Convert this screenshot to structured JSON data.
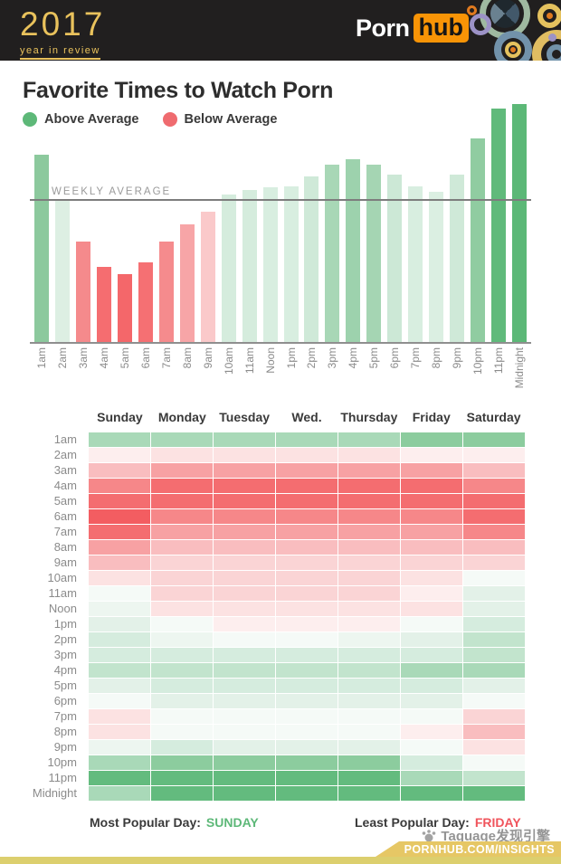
{
  "header": {
    "year": "2017",
    "tagline": "year in review",
    "brand_porn": "Porn",
    "brand_hub": "hub"
  },
  "title": "Favorite Times to Watch Porn",
  "legend": {
    "above": "Above Average",
    "below": "Below Average"
  },
  "colors": {
    "above_green": "#5db878",
    "below_red": "#ef6b6f",
    "gold": "#e9c25c",
    "hub_orange": "#f89406",
    "header_bg": "#211f1f",
    "ribbon_gold": "#e6c765",
    "strip_gold": "#dccf6e"
  },
  "chart_data": [
    {
      "type": "bar",
      "title": "Favorite Times to Watch Porn (hourly traffic vs weekly average)",
      "categories": [
        "1am",
        "2am",
        "3am",
        "4am",
        "5am",
        "6am",
        "7am",
        "8am",
        "9am",
        "10am",
        "11am",
        "Noon",
        "1pm",
        "2pm",
        "3pm",
        "4pm",
        "5pm",
        "6pm",
        "7pm",
        "8pm",
        "9pm",
        "10pm",
        "11pm",
        "Midnight"
      ],
      "values": [
        132,
        100,
        71,
        53,
        48,
        56,
        71,
        83,
        92,
        104,
        107,
        109,
        110,
        117,
        125,
        129,
        125,
        118,
        110,
        106,
        118,
        144,
        165,
        168
      ],
      "unit": "percent of weekly average",
      "ylim": [
        0,
        175
      ],
      "average_line": {
        "label": "WEEKLY AVERAGE",
        "value": 100
      },
      "legend_position": "top-left",
      "grid": false,
      "bar_colors": [
        "#8cc99d",
        "#ddefe3",
        "#f58a8c",
        "#f56d70",
        "#f4676a",
        "#f57073",
        "#f58b8d",
        "#f7a5a7",
        "#fac9ca",
        "#d5ecdd",
        "#d5ecdd",
        "#d8eee0",
        "#d8eee0",
        "#cfe9d8",
        "#a8d7b6",
        "#9dd2ad",
        "#a5d5b3",
        "#cce8d6",
        "#d8eee0",
        "#dbefe2",
        "#cfe9d8",
        "#90cca1",
        "#60ba7b",
        "#5cb877"
      ]
    },
    {
      "type": "heatmap",
      "title": "Day-by-hour intensity (negative = below average / red, positive = above average / green)",
      "columns": [
        "Sunday",
        "Monday",
        "Tuesday",
        "Wed.",
        "Thursday",
        "Friday",
        "Saturday"
      ],
      "rows": [
        "1am",
        "2am",
        "3am",
        "4am",
        "5am",
        "6am",
        "7am",
        "8am",
        "9am",
        "10am",
        "11am",
        "Noon",
        "1pm",
        "2pm",
        "3pm",
        "4pm",
        "5pm",
        "6pm",
        "7pm",
        "8pm",
        "9pm",
        "10pm",
        "11pm",
        "Midnight"
      ],
      "scale": [
        -8,
        7
      ],
      "cells": [
        [
          5,
          5,
          5,
          5,
          5,
          6,
          6
        ],
        [
          -1,
          -2,
          -2,
          -2,
          -2,
          -1,
          -1
        ],
        [
          -4,
          -5,
          -5,
          -5,
          -5,
          -5,
          -4
        ],
        [
          -6,
          -7,
          -7,
          -7,
          -7,
          -7,
          -6
        ],
        [
          -7,
          -7,
          -7,
          -7,
          -7,
          -7,
          -7
        ],
        [
          -8,
          -6,
          -6,
          -6,
          -6,
          -6,
          -7
        ],
        [
          -7,
          -5,
          -5,
          -5,
          -5,
          -5,
          -6
        ],
        [
          -5,
          -4,
          -4,
          -4,
          -4,
          -4,
          -4
        ],
        [
          -4,
          -3,
          -3,
          -3,
          -3,
          -3,
          -3
        ],
        [
          -2,
          -3,
          -3,
          -3,
          -3,
          -2,
          0
        ],
        [
          0,
          -3,
          -3,
          -3,
          -3,
          -1,
          2
        ],
        [
          1,
          -2,
          -2,
          -2,
          -2,
          -2,
          2
        ],
        [
          2,
          0,
          -1,
          -1,
          -1,
          0,
          3
        ],
        [
          3,
          1,
          0,
          0,
          1,
          2,
          4
        ],
        [
          3,
          3,
          3,
          3,
          3,
          3,
          4
        ],
        [
          4,
          4,
          4,
          4,
          4,
          5,
          5
        ],
        [
          2,
          3,
          3,
          3,
          3,
          3,
          2
        ],
        [
          0,
          2,
          2,
          2,
          2,
          2,
          0
        ],
        [
          -2,
          0,
          0,
          0,
          0,
          0,
          -3
        ],
        [
          -2,
          0,
          0,
          0,
          0,
          -1,
          -4
        ],
        [
          1,
          3,
          2,
          2,
          2,
          0,
          -2
        ],
        [
          5,
          6,
          6,
          6,
          6,
          3,
          0
        ],
        [
          7,
          7,
          7,
          7,
          7,
          5,
          4
        ],
        [
          5,
          7,
          7,
          7,
          7,
          7,
          7
        ]
      ],
      "palette": {
        "-8": "#f35d61",
        "-7": "#f46d70",
        "-6": "#f68789",
        "-5": "#f7a1a3",
        "-4": "#f9bdbf",
        "-3": "#fad4d5",
        "-2": "#fce2e2",
        "-1": "#fdeeee",
        "0": "#f5faf7",
        "1": "#edf6f0",
        "2": "#e3f1e8",
        "3": "#d5ecde",
        "4": "#c2e4cd",
        "5": "#a9d9b8",
        "6": "#8ccc9e",
        "7": "#63bb7e"
      }
    }
  ],
  "footer": {
    "most_label": "Most Popular Day:",
    "most_value": "SUNDAY",
    "least_label": "Least Popular Day:",
    "least_value": "FRIDAY"
  },
  "watermark": "Taguage发现引擎",
  "ribbon": "PORNHUB.COM/INSIGHTS"
}
